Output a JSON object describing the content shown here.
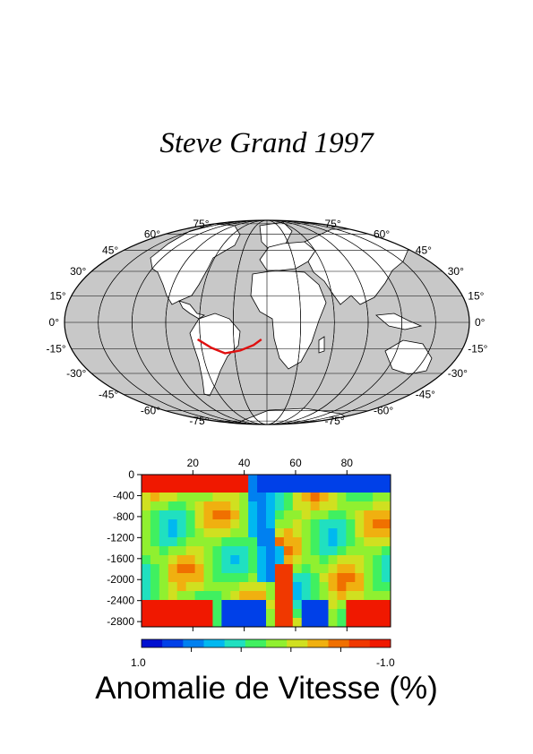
{
  "title": "Steve Grand 1997",
  "map": {
    "latitude_labels": [
      "75°",
      "60°",
      "45°",
      "30°",
      "15°",
      "0°",
      "-15°",
      "-30°",
      "-45°",
      "-60°",
      "-75°"
    ],
    "ocean_color": "#c8c8c8",
    "land_color": "#ffffff",
    "profile_color": "#e01010",
    "profile_path_lonlat": [
      [
        -62,
        -6
      ],
      [
        -50,
        -9
      ],
      [
        -38,
        -11
      ],
      [
        -24,
        -10
      ],
      [
        -12,
        -8
      ],
      [
        -5,
        -6
      ]
    ]
  },
  "cross_section": {
    "x_ticks": [
      "20",
      "40",
      "60",
      "80"
    ],
    "depth_ticks": [
      "0",
      "-400",
      "-800",
      "-1200",
      "-1600",
      "-2000",
      "-2400",
      "-2800"
    ]
  },
  "colorbar": {
    "left_label": "1.0",
    "right_label": "-1.0",
    "label": "Anomalie de Vitesse (%)",
    "colors": [
      "#0010d0",
      "#0040e8",
      "#0080f0",
      "#00b8f0",
      "#20e0c0",
      "#40f060",
      "#90f030",
      "#d0e020",
      "#f0b010",
      "#f07000",
      "#f03800",
      "#f01800"
    ]
  }
}
